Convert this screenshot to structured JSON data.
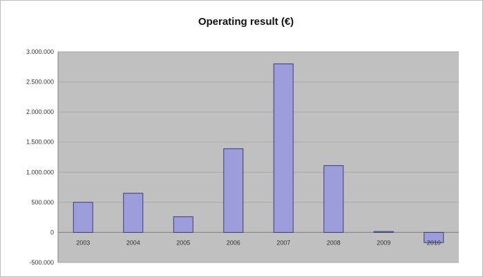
{
  "chart_data": {
    "type": "bar",
    "title": "Operating result (€)",
    "xlabel": "",
    "ylabel": "",
    "categories": [
      "2003",
      "2004",
      "2005",
      "2006",
      "2007",
      "2008",
      "2009",
      "2010"
    ],
    "values": [
      500000,
      650000,
      260000,
      1390000,
      2800000,
      1110000,
      15000,
      -170000
    ],
    "ylim": [
      -500000,
      3000000
    ],
    "yticks": [
      -500000,
      0,
      500000,
      1000000,
      1500000,
      2000000,
      2500000,
      3000000
    ],
    "ytick_labels": [
      "-500.000",
      "0",
      "500.000",
      "1.000.000",
      "1.500.000",
      "2.000.000",
      "2.500.000",
      "3.000.000"
    ],
    "grid": true,
    "legend": "none",
    "colors": {
      "bar_fill": "#9d9ddc",
      "bar_stroke": "#3a3a70",
      "plot_background": "#c0c0c0",
      "grid_line": "#a8a8a8"
    }
  }
}
